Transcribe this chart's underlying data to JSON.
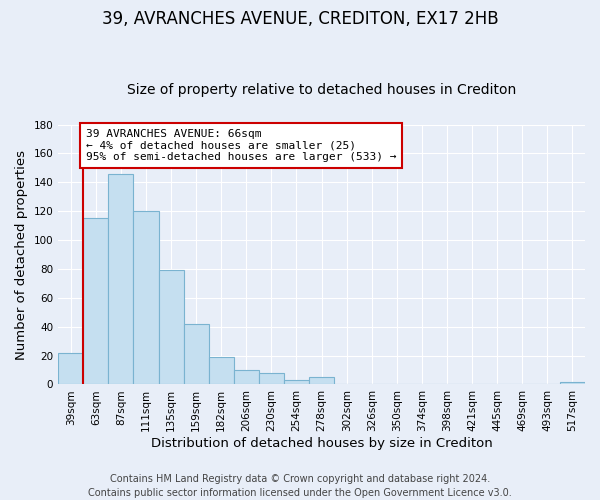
{
  "title": "39, AVRANCHES AVENUE, CREDITON, EX17 2HB",
  "subtitle": "Size of property relative to detached houses in Crediton",
  "xlabel": "Distribution of detached houses by size in Crediton",
  "ylabel": "Number of detached properties",
  "bar_labels": [
    "39sqm",
    "63sqm",
    "87sqm",
    "111sqm",
    "135sqm",
    "159sqm",
    "182sqm",
    "206sqm",
    "230sqm",
    "254sqm",
    "278sqm",
    "302sqm",
    "326sqm",
    "350sqm",
    "374sqm",
    "398sqm",
    "421sqm",
    "445sqm",
    "469sqm",
    "493sqm",
    "517sqm"
  ],
  "bar_heights": [
    22,
    115,
    146,
    120,
    79,
    42,
    19,
    10,
    8,
    3,
    5,
    0,
    0,
    0,
    0,
    0,
    0,
    0,
    0,
    0,
    2
  ],
  "bar_color": "#c5dff0",
  "bar_edge_color": "#7ab3d0",
  "ylim": [
    0,
    180
  ],
  "yticks": [
    0,
    20,
    40,
    60,
    80,
    100,
    120,
    140,
    160,
    180
  ],
  "property_line_color": "#cc0000",
  "annotation_title": "39 AVRANCHES AVENUE: 66sqm",
  "annotation_line1": "← 4% of detached houses are smaller (25)",
  "annotation_line2": "95% of semi-detached houses are larger (533) →",
  "annotation_box_color": "#ffffff",
  "annotation_box_edge": "#cc0000",
  "footer_line1": "Contains HM Land Registry data © Crown copyright and database right 2024.",
  "footer_line2": "Contains public sector information licensed under the Open Government Licence v3.0.",
  "background_color": "#e8eef8",
  "grid_color": "#ffffff",
  "title_fontsize": 12,
  "subtitle_fontsize": 10,
  "axis_label_fontsize": 9.5,
  "tick_fontsize": 7.5,
  "footer_fontsize": 7
}
